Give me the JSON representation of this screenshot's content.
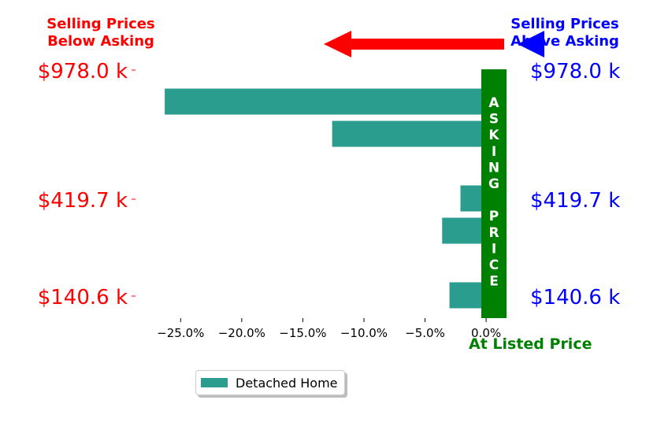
{
  "titles": {
    "left_line1": "Selling Prices",
    "left_line2": "Below Asking",
    "right_line1": "Selling Prices",
    "right_line2": "Above Asking",
    "center_label": "At Listed Price",
    "asking_band_text": "ASKING PRICE"
  },
  "colors": {
    "bar": "#2a9d8f",
    "asking_band": "#008000",
    "below_text": "#ff0000",
    "above_text": "#0000ff",
    "arrow_left": "#ff0000",
    "arrow_right": "#0000ff"
  },
  "chart_data": {
    "type": "bar",
    "orientation": "horizontal",
    "xlim": [
      -28.5,
      1.8
    ],
    "x_ticks": [
      -25,
      -20,
      -15,
      -10,
      -5,
      0
    ],
    "x_tick_labels": [
      "−25.0%",
      "−20.0%",
      "−15.0%",
      "−10.0%",
      "−5.0%",
      "0.0%"
    ],
    "left_tick_labels": [
      "$978.0 k",
      "$419.7 k",
      "$140.6 k"
    ],
    "right_tick_labels": [
      "$978.0 k",
      "$419.7 k",
      "$140.6 k"
    ],
    "series": [
      {
        "name": "Detached Home",
        "values": [
          -26.3,
          -12.6,
          1.1,
          -2.1,
          -3.6,
          1.1,
          -3.0
        ]
      }
    ]
  },
  "legend": {
    "label": "Detached Home"
  }
}
